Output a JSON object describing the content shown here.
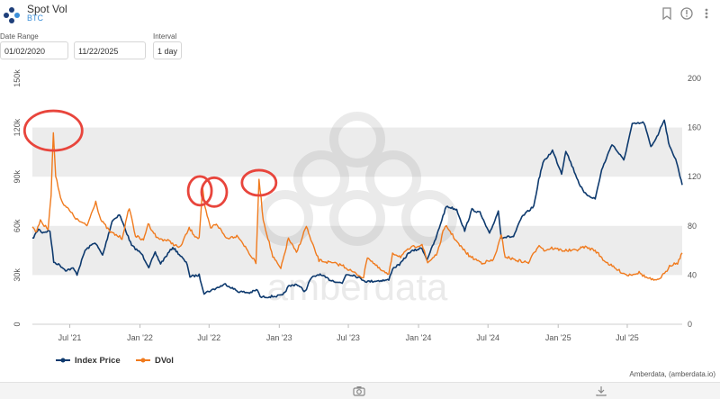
{
  "header": {
    "title": "Spot Vol",
    "subtitle": "BTC",
    "icons": [
      "logo-icon",
      "bookmark-icon",
      "info-icon",
      "more-icon"
    ]
  },
  "controls": {
    "date_range_label": "Date Range",
    "start_date": "01/02/2020",
    "end_date": "11/22/2025",
    "interval_label": "Interval",
    "interval_value": "1 day"
  },
  "footer": {
    "icons": [
      "camera-icon",
      "download-icon"
    ]
  },
  "colors": {
    "index_price": "#0e3a6e",
    "dvol": "#f07a1d",
    "annotation": "#e8453c",
    "band": "#ececec"
  },
  "chart_data": {
    "type": "line",
    "title": "",
    "x_ticks": [
      "Jul '21",
      "Jan '22",
      "Jul '22",
      "Jan '23",
      "Jul '23",
      "Jan '24",
      "Jul '24",
      "Jan '25",
      "Jul '25"
    ],
    "x_tick_dates": [
      "2021-07-01",
      "2022-01-01",
      "2022-07-01",
      "2023-01-01",
      "2023-07-01",
      "2024-01-01",
      "2024-07-01",
      "2025-01-01",
      "2025-07-01"
    ],
    "x_range": [
      "2021-03-25",
      "2025-11-22"
    ],
    "y_left": {
      "ticks": [
        "0",
        "30k",
        "60k",
        "90k",
        "120k",
        "150k"
      ],
      "range": [
        0,
        150000
      ]
    },
    "y_right": {
      "ticks": [
        "0",
        "40",
        "80",
        "120",
        "160",
        "200"
      ],
      "range": [
        0,
        200
      ]
    },
    "grid": "alternating-bands",
    "legend_position": "bottom-left",
    "credit": "Amberdata, (amberdata.io)",
    "watermark": "amberdata",
    "annotations": [
      "circle",
      "circle",
      "circle",
      "circle"
    ],
    "series": [
      {
        "name": "Index Price",
        "axis": "left",
        "points": [
          [
            "2021-03-25",
            52000
          ],
          [
            "2021-04-10",
            58000
          ],
          [
            "2021-04-20",
            56000
          ],
          [
            "2021-05-10",
            57000
          ],
          [
            "2021-05-20",
            38000
          ],
          [
            "2021-06-05",
            36000
          ],
          [
            "2021-06-20",
            33000
          ],
          [
            "2021-07-10",
            34000
          ],
          [
            "2021-07-20",
            30500
          ],
          [
            "2021-08-10",
            45000
          ],
          [
            "2021-09-05",
            50000
          ],
          [
            "2021-09-25",
            42000
          ],
          [
            "2021-10-20",
            63000
          ],
          [
            "2021-11-08",
            67000
          ],
          [
            "2021-11-25",
            57000
          ],
          [
            "2021-12-10",
            48000
          ],
          [
            "2022-01-05",
            43000
          ],
          [
            "2022-01-24",
            35000
          ],
          [
            "2022-02-10",
            43500
          ],
          [
            "2022-02-24",
            37000
          ],
          [
            "2022-03-28",
            47000
          ],
          [
            "2022-04-20",
            41000
          ],
          [
            "2022-05-05",
            36500
          ],
          [
            "2022-05-12",
            29000
          ],
          [
            "2022-06-05",
            30000
          ],
          [
            "2022-06-18",
            19000
          ],
          [
            "2022-07-10",
            21000
          ],
          [
            "2022-08-13",
            24500
          ],
          [
            "2022-09-15",
            20000
          ],
          [
            "2022-10-15",
            19200
          ],
          [
            "2022-11-05",
            21000
          ],
          [
            "2022-11-12",
            16500
          ],
          [
            "2022-12-15",
            17000
          ],
          [
            "2023-01-10",
            17500
          ],
          [
            "2023-01-25",
            23000
          ],
          [
            "2023-02-15",
            24500
          ],
          [
            "2023-03-10",
            20000
          ],
          [
            "2023-03-25",
            28000
          ],
          [
            "2023-04-15",
            30500
          ],
          [
            "2023-05-15",
            27000
          ],
          [
            "2023-06-15",
            25000
          ],
          [
            "2023-06-25",
            30500
          ],
          [
            "2023-07-15",
            30000
          ],
          [
            "2023-08-18",
            26000
          ],
          [
            "2023-09-15",
            26500
          ],
          [
            "2023-10-15",
            27000
          ],
          [
            "2023-10-25",
            34000
          ],
          [
            "2023-11-15",
            37000
          ],
          [
            "2023-12-08",
            44000
          ],
          [
            "2024-01-10",
            46500
          ],
          [
            "2024-01-23",
            39500
          ],
          [
            "2024-02-15",
            52000
          ],
          [
            "2024-03-05",
            66000
          ],
          [
            "2024-03-14",
            72000
          ],
          [
            "2024-04-10",
            70000
          ],
          [
            "2024-05-01",
            57000
          ],
          [
            "2024-05-20",
            70000
          ],
          [
            "2024-06-10",
            68000
          ],
          [
            "2024-07-05",
            55000
          ],
          [
            "2024-07-28",
            69000
          ],
          [
            "2024-08-05",
            53000
          ],
          [
            "2024-09-06",
            53500
          ],
          [
            "2024-09-28",
            65500
          ],
          [
            "2024-10-29",
            72000
          ],
          [
            "2024-11-11",
            88000
          ],
          [
            "2024-11-22",
            98500
          ],
          [
            "2024-12-17",
            106000
          ],
          [
            "2025-01-10",
            92000
          ],
          [
            "2025-01-21",
            106000
          ],
          [
            "2025-02-25",
            86000
          ],
          [
            "2025-03-10",
            80000
          ],
          [
            "2025-04-08",
            76500
          ],
          [
            "2025-04-25",
            94000
          ],
          [
            "2025-05-22",
            110000
          ],
          [
            "2025-06-22",
            100000
          ],
          [
            "2025-07-14",
            122000
          ],
          [
            "2025-08-14",
            123000
          ],
          [
            "2025-09-01",
            108000
          ],
          [
            "2025-09-20",
            116000
          ],
          [
            "2025-10-06",
            125000
          ],
          [
            "2025-10-20",
            108000
          ],
          [
            "2025-11-05",
            101000
          ],
          [
            "2025-11-22",
            85000
          ]
        ]
      },
      {
        "name": "DVol",
        "axis": "right",
        "points": [
          [
            "2021-03-25",
            80
          ],
          [
            "2021-04-05",
            75
          ],
          [
            "2021-04-15",
            85
          ],
          [
            "2021-04-25",
            80
          ],
          [
            "2021-05-05",
            78
          ],
          [
            "2021-05-13",
            105
          ],
          [
            "2021-05-19",
            156
          ],
          [
            "2021-05-25",
            120
          ],
          [
            "2021-06-10",
            100
          ],
          [
            "2021-07-01",
            92
          ],
          [
            "2021-07-20",
            85
          ],
          [
            "2021-08-15",
            80
          ],
          [
            "2021-09-07",
            100
          ],
          [
            "2021-09-20",
            85
          ],
          [
            "2021-10-15",
            75
          ],
          [
            "2021-11-15",
            70
          ],
          [
            "2021-12-04",
            95
          ],
          [
            "2021-12-20",
            72
          ],
          [
            "2022-01-10",
            68
          ],
          [
            "2022-01-22",
            82
          ],
          [
            "2022-02-15",
            70
          ],
          [
            "2022-03-15",
            68
          ],
          [
            "2022-04-15",
            62
          ],
          [
            "2022-05-10",
            78
          ],
          [
            "2022-05-25",
            72
          ],
          [
            "2022-06-05",
            70
          ],
          [
            "2022-06-14",
            110
          ],
          [
            "2022-06-20",
            95
          ],
          [
            "2022-07-05",
            78
          ],
          [
            "2022-07-20",
            82
          ],
          [
            "2022-08-15",
            70
          ],
          [
            "2022-09-15",
            72
          ],
          [
            "2022-10-20",
            55
          ],
          [
            "2022-11-01",
            50
          ],
          [
            "2022-11-09",
            118
          ],
          [
            "2022-11-20",
            85
          ],
          [
            "2022-12-15",
            55
          ],
          [
            "2023-01-05",
            45
          ],
          [
            "2023-01-25",
            70
          ],
          [
            "2023-02-15",
            58
          ],
          [
            "2023-03-13",
            80
          ],
          [
            "2023-03-25",
            68
          ],
          [
            "2023-04-15",
            52
          ],
          [
            "2023-05-15",
            50
          ],
          [
            "2023-06-15",
            48
          ],
          [
            "2023-07-15",
            42
          ],
          [
            "2023-08-10",
            38
          ],
          [
            "2023-08-20",
            55
          ],
          [
            "2023-09-20",
            45
          ],
          [
            "2023-10-15",
            40
          ],
          [
            "2023-10-25",
            58
          ],
          [
            "2023-11-15",
            55
          ],
          [
            "2023-12-10",
            62
          ],
          [
            "2024-01-10",
            65
          ],
          [
            "2024-01-25",
            50
          ],
          [
            "2024-02-20",
            58
          ],
          [
            "2024-03-05",
            75
          ],
          [
            "2024-03-14",
            80
          ],
          [
            "2024-04-15",
            65
          ],
          [
            "2024-05-15",
            55
          ],
          [
            "2024-06-15",
            50
          ],
          [
            "2024-07-15",
            52
          ],
          [
            "2024-08-05",
            72
          ],
          [
            "2024-08-15",
            55
          ],
          [
            "2024-09-15",
            52
          ],
          [
            "2024-10-15",
            50
          ],
          [
            "2024-11-12",
            65
          ],
          [
            "2024-11-25",
            60
          ],
          [
            "2024-12-15",
            62
          ],
          [
            "2025-01-15",
            60
          ],
          [
            "2025-02-15",
            60
          ],
          [
            "2025-03-10",
            63
          ],
          [
            "2025-04-08",
            60
          ],
          [
            "2025-05-01",
            52
          ],
          [
            "2025-06-01",
            45
          ],
          [
            "2025-07-01",
            40
          ],
          [
            "2025-08-01",
            42
          ],
          [
            "2025-08-20",
            38
          ],
          [
            "2025-09-15",
            35
          ],
          [
            "2025-10-10",
            42
          ],
          [
            "2025-10-20",
            48
          ],
          [
            "2025-11-10",
            50
          ],
          [
            "2025-11-22",
            58
          ]
        ]
      }
    ]
  }
}
